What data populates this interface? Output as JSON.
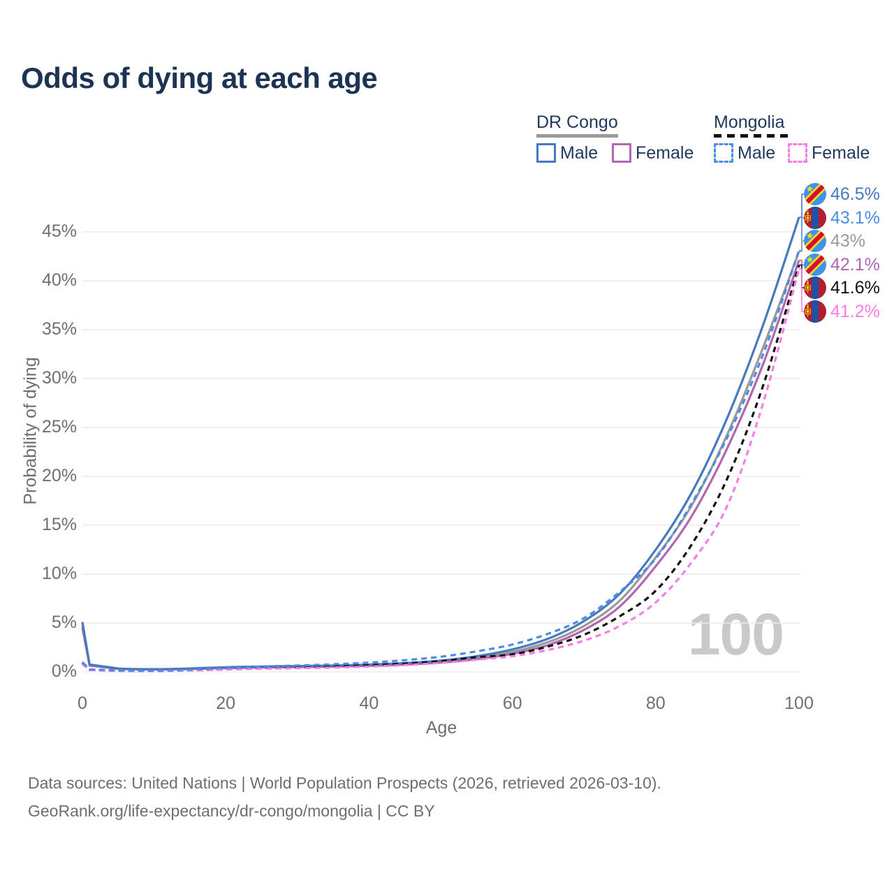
{
  "title": "Odds of dying at each age",
  "legend": {
    "groups": [
      {
        "label": "DR Congo",
        "underline_style": "solid",
        "underline_color": "#9a9a9a",
        "items": [
          {
            "label": "Male",
            "color": "#4679bd",
            "dashed": false
          },
          {
            "label": "Female",
            "color": "#b267b2",
            "dashed": false
          }
        ]
      },
      {
        "label": "Mongolia",
        "underline_style": "dashed",
        "underline_color": "#111111",
        "items": [
          {
            "label": "Male",
            "color": "#4a8ce8",
            "dashed": true
          },
          {
            "label": "Female",
            "color": "#f87de4",
            "dashed": true
          }
        ]
      }
    ]
  },
  "chart_data": {
    "type": "line",
    "xlabel": "Age",
    "ylabel": "Probability of dying",
    "age_watermark": "100",
    "xlim": [
      0,
      100
    ],
    "ylim": [
      0,
      48
    ],
    "grid": true,
    "xticks": [
      "0",
      "20",
      "40",
      "60",
      "80",
      "100"
    ],
    "xtick_values": [
      0,
      20,
      40,
      60,
      80,
      100
    ],
    "yticks": [
      "0%",
      "5%",
      "10%",
      "15%",
      "20%",
      "25%",
      "30%",
      "35%",
      "40%",
      "45%"
    ],
    "ytick_values": [
      0,
      5,
      10,
      15,
      20,
      25,
      30,
      35,
      40,
      45
    ],
    "x": [
      0,
      1,
      5,
      10,
      15,
      20,
      25,
      30,
      35,
      40,
      45,
      50,
      55,
      60,
      65,
      70,
      75,
      80,
      85,
      90,
      95,
      100
    ],
    "series": [
      {
        "name": "DR Congo Male",
        "flag": "dr-congo",
        "color": "#4679bd",
        "dash": "solid",
        "end_label": "46.5%",
        "values": [
          5.1,
          0.75,
          0.35,
          0.28,
          0.35,
          0.48,
          0.55,
          0.6,
          0.65,
          0.75,
          0.9,
          1.15,
          1.6,
          2.3,
          3.4,
          5.2,
          8.0,
          12.5,
          18.3,
          26.0,
          35.5,
          46.5
        ]
      },
      {
        "name": "Mongolia Male",
        "flag": "mongolia",
        "color": "#4a8ce8",
        "dash": "dashed",
        "end_label": "43.1%",
        "values": [
          1.0,
          0.25,
          0.14,
          0.12,
          0.22,
          0.4,
          0.55,
          0.65,
          0.78,
          0.95,
          1.2,
          1.55,
          2.1,
          2.8,
          3.9,
          5.5,
          8.2,
          11.6,
          17.2,
          24.0,
          32.5,
          43.1
        ]
      },
      {
        "name": "DR Congo",
        "flag": "dr-congo",
        "color": "#9a9a9a",
        "dash": "solid",
        "end_label": "43%",
        "values": [
          4.8,
          0.7,
          0.33,
          0.26,
          0.32,
          0.43,
          0.5,
          0.55,
          0.6,
          0.68,
          0.82,
          1.05,
          1.45,
          2.05,
          3.05,
          4.7,
          7.3,
          11.7,
          17.0,
          24.3,
          33.2,
          43.0
        ]
      },
      {
        "name": "DR Congo Female",
        "flag": "dr-congo",
        "color": "#b267b2",
        "dash": "solid",
        "end_label": "42.1%",
        "values": [
          4.5,
          0.65,
          0.31,
          0.24,
          0.29,
          0.38,
          0.44,
          0.49,
          0.54,
          0.62,
          0.75,
          0.95,
          1.3,
          1.85,
          2.75,
          4.3,
          6.7,
          10.8,
          15.9,
          22.9,
          31.5,
          42.1
        ]
      },
      {
        "name": "Mongolia",
        "flag": "mongolia",
        "color": "#111111",
        "dash": "dashed",
        "end_label": "41.6%",
        "values": [
          0.9,
          0.22,
          0.12,
          0.1,
          0.18,
          0.32,
          0.42,
          0.48,
          0.56,
          0.68,
          0.85,
          1.1,
          1.5,
          1.8,
          2.6,
          3.8,
          5.7,
          8.3,
          13.0,
          19.8,
          29.3,
          41.6
        ]
      },
      {
        "name": "Mongolia Female",
        "flag": "mongolia",
        "color": "#f87de4",
        "dash": "dashed",
        "end_label": "41.2%",
        "values": [
          0.8,
          0.2,
          0.1,
          0.08,
          0.14,
          0.24,
          0.32,
          0.38,
          0.45,
          0.55,
          0.7,
          0.92,
          1.25,
          1.6,
          2.25,
          3.2,
          4.7,
          7.1,
          11.2,
          17.0,
          27.5,
          41.2
        ]
      }
    ]
  },
  "footer": {
    "line1": "Data sources: United Nations | World Population Prospects (2026, retrieved 2026-03-10).",
    "line2": "GeoRank.org/life-expectancy/dr-congo/mongolia | CC BY"
  }
}
